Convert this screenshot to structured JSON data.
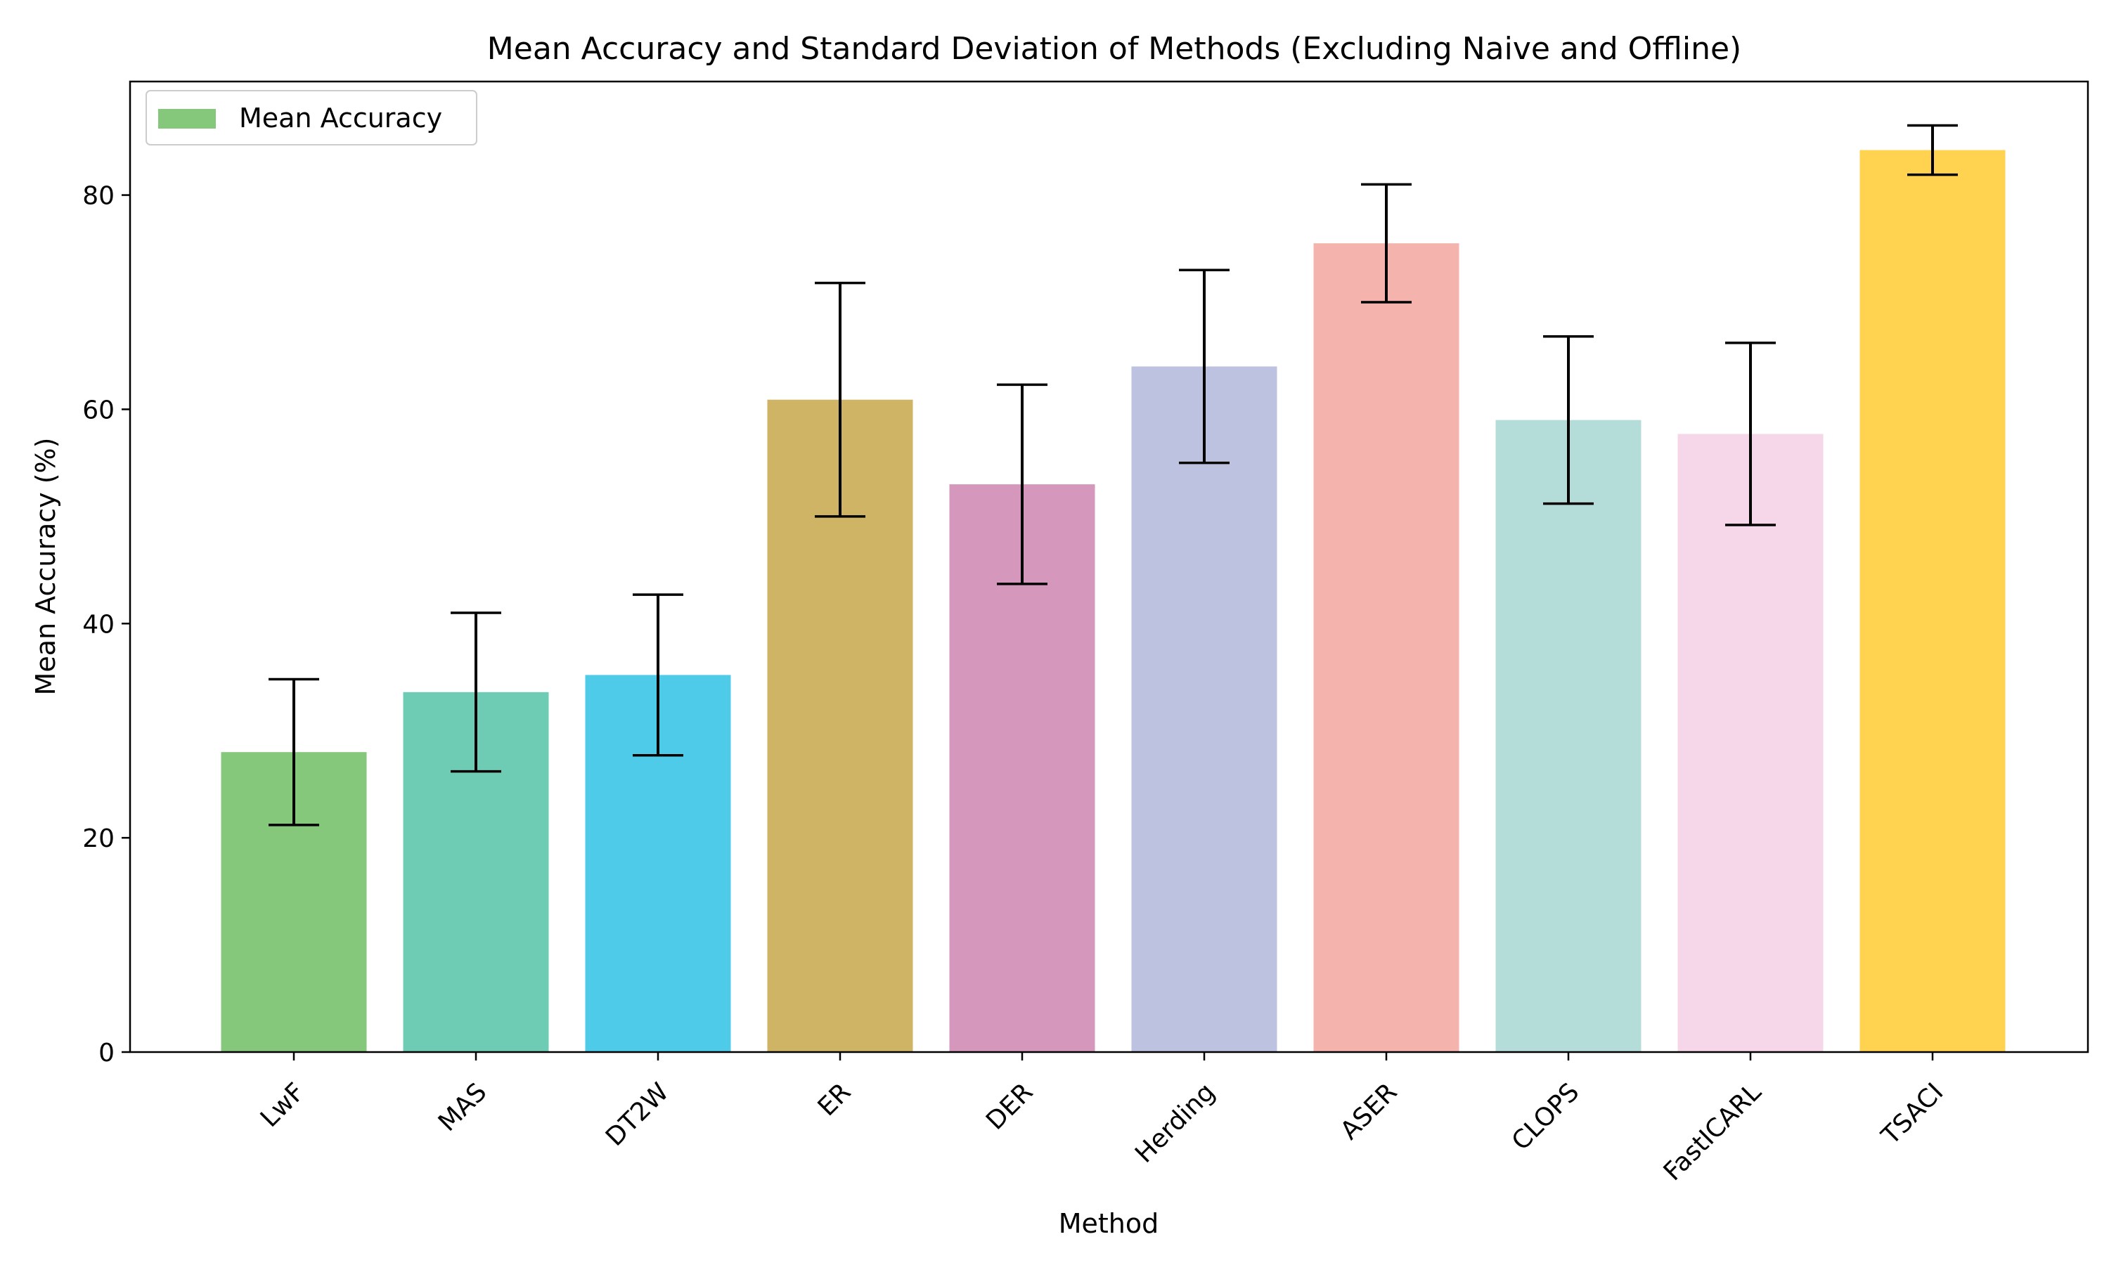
{
  "chart_data": {
    "type": "bar",
    "title": "Mean Accuracy and Standard Deviation of Methods (Excluding Naive and Offline)",
    "xlabel": "Method",
    "ylabel": "Mean Accuracy (%)",
    "categories": [
      "LwF",
      "MAS",
      "DT2W",
      "ER",
      "DER",
      "Herding",
      "ASER",
      "CLOPS",
      "FastICARL",
      "TSACI"
    ],
    "series": [
      {
        "name": "Mean Accuracy",
        "values": [
          28.0,
          33.6,
          35.2,
          60.9,
          53.0,
          64.0,
          75.5,
          59.0,
          57.7,
          84.2
        ],
        "std": [
          6.8,
          7.4,
          7.5,
          10.9,
          9.3,
          9.0,
          5.5,
          7.8,
          8.5,
          2.3
        ]
      }
    ],
    "bar_colors": [
      "#85c77b",
      "#6fccb4",
      "#4fcbea",
      "#cfb466",
      "#d597bb",
      "#bdc2e0",
      "#f5b3ae",
      "#b4ddda",
      "#f6d6e9",
      "#ffd24f"
    ],
    "ylim": [
      0,
      90.6
    ],
    "yticks": [
      0,
      20,
      40,
      60,
      80
    ],
    "legend": {
      "position": "top-left",
      "label": "Mean Accuracy",
      "color": "#85c77b"
    },
    "grid": false
  }
}
